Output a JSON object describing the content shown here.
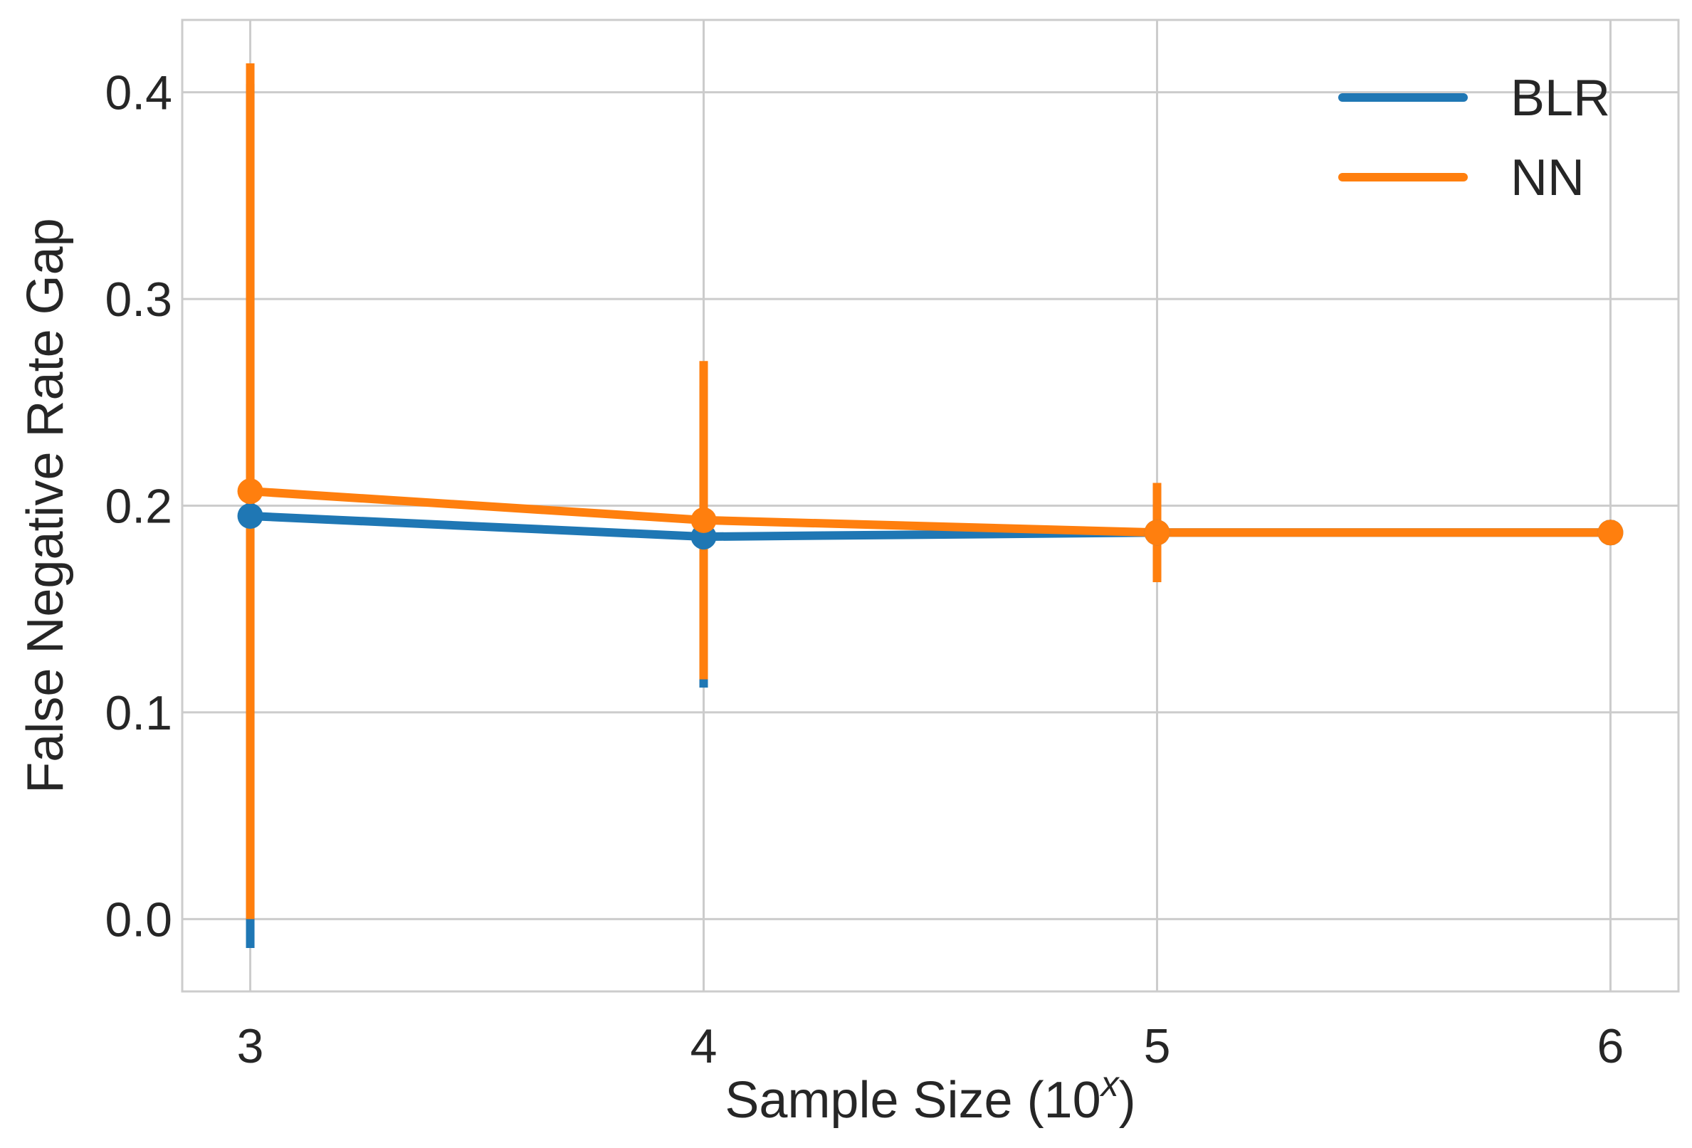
{
  "chart_data": {
    "type": "line",
    "x": [
      3,
      4,
      5,
      6
    ],
    "xlabel_prefix": "Sample Size (10",
    "xlabel_superscript": "x",
    "xlabel_suffix": ")",
    "ylabel": "False Negative Rate Gap",
    "xlim": [
      2.85,
      6.15
    ],
    "ylim": [
      -0.035,
      0.435
    ],
    "xticks": [
      3,
      4,
      5,
      6
    ],
    "yticks": [
      0.0,
      0.1,
      0.2,
      0.3,
      0.4
    ],
    "ytick_labels": [
      "0.0",
      "0.1",
      "0.2",
      "0.3",
      "0.4"
    ],
    "grid": true,
    "legend_position": "top-right",
    "series": [
      {
        "name": "BLR",
        "color": "#1f77b4",
        "values": [
          0.195,
          0.185,
          0.187,
          0.187
        ],
        "err_low": [
          -0.014,
          0.112,
          0.165,
          0.181
        ],
        "err_high": [
          0.404,
          0.258,
          0.209,
          0.193
        ]
      },
      {
        "name": "NN",
        "color": "#ff7f0e",
        "values": [
          0.207,
          0.193,
          0.187,
          0.187
        ],
        "err_low": [
          0.0,
          0.116,
          0.163,
          0.181
        ],
        "err_high": [
          0.414,
          0.27,
          0.211,
          0.193
        ]
      }
    ]
  }
}
